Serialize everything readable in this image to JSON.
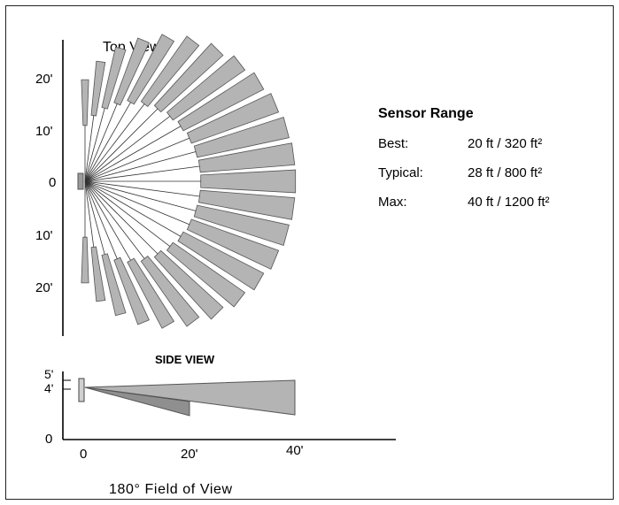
{
  "top_view": {
    "title": "Top View",
    "y_labels": [
      "20'",
      "10'",
      "0",
      "10'",
      "20'"
    ],
    "zones": {
      "count": 25,
      "span_deg": 180
    }
  },
  "side_view": {
    "title": "SIDE VIEW",
    "y_labels": [
      "5'",
      "4'",
      "0"
    ],
    "x_labels": [
      "0",
      "20'",
      "40'"
    ]
  },
  "sensor_range": {
    "title": "Sensor Range",
    "rows": [
      {
        "label": "Best:",
        "value": "20 ft / 320 ft²"
      },
      {
        "label": "Typical:",
        "value": "28 ft / 800 ft²"
      },
      {
        "label": "Max:",
        "value": "40 ft / 1200 ft²"
      }
    ]
  },
  "caption": "180° Field of View",
  "colors": {
    "zone_fill": "#b4b4b4",
    "zone_dark": "#8f8f8f",
    "outline": "#555555"
  }
}
